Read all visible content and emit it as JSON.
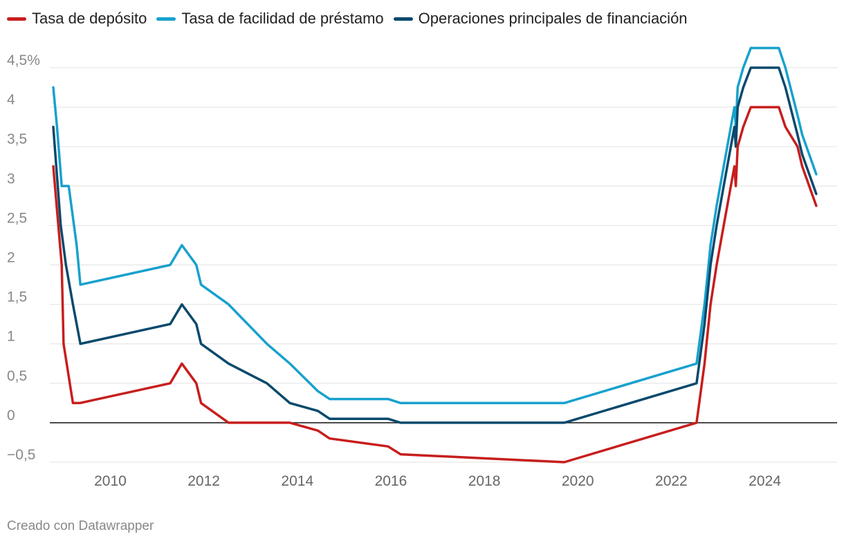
{
  "chart_data": {
    "type": "line",
    "title": "",
    "xlabel": "",
    "ylabel": "",
    "xlim": [
      2008.75,
      2025.25
    ],
    "ylim": [
      -0.6,
      4.9
    ],
    "y_ticks": [
      {
        "value": 4.5,
        "label": "4,5%"
      },
      {
        "value": 4,
        "label": "4"
      },
      {
        "value": 3.5,
        "label": "3,5"
      },
      {
        "value": 3,
        "label": "3"
      },
      {
        "value": 2.5,
        "label": "2,5"
      },
      {
        "value": 2,
        "label": "2"
      },
      {
        "value": 1.5,
        "label": "1,5"
      },
      {
        "value": 1,
        "label": "1"
      },
      {
        "value": 0.5,
        "label": "0,5"
      },
      {
        "value": 0,
        "label": "0"
      },
      {
        "value": -0.5,
        "label": "−0,5"
      }
    ],
    "x_ticks": [
      {
        "value": 2010,
        "label": "2010"
      },
      {
        "value": 2012,
        "label": "2012"
      },
      {
        "value": 2014,
        "label": "2014"
      },
      {
        "value": 2016,
        "label": "2016"
      },
      {
        "value": 2018,
        "label": "2018"
      },
      {
        "value": 2020,
        "label": "2020"
      },
      {
        "value": 2022,
        "label": "2022"
      },
      {
        "value": 2024,
        "label": "2024"
      }
    ],
    "legend_position": "top-left",
    "series": [
      {
        "name": "Tasa de depósito",
        "color": "#c71e1d",
        "points": [
          [
            2008.78,
            3.25
          ],
          [
            2008.96,
            2.0
          ],
          [
            2009.0,
            1.0
          ],
          [
            2009.2,
            0.25
          ],
          [
            2009.35,
            0.25
          ],
          [
            2011.28,
            0.5
          ],
          [
            2011.53,
            0.75
          ],
          [
            2011.84,
            0.5
          ],
          [
            2011.94,
            0.25
          ],
          [
            2012.53,
            0.0
          ],
          [
            2013.84,
            0.0
          ],
          [
            2014.44,
            -0.1
          ],
          [
            2014.69,
            -0.2
          ],
          [
            2015.94,
            -0.3
          ],
          [
            2016.21,
            -0.4
          ],
          [
            2019.71,
            -0.5
          ],
          [
            2022.54,
            0.0
          ],
          [
            2022.71,
            0.75
          ],
          [
            2022.84,
            1.5
          ],
          [
            2022.97,
            2.0
          ],
          [
            2023.12,
            2.5
          ],
          [
            2023.35,
            3.25
          ],
          [
            2023.38,
            3.0
          ],
          [
            2023.42,
            3.5
          ],
          [
            2023.54,
            3.75
          ],
          [
            2023.7,
            4.0
          ],
          [
            2024.3,
            4.0
          ],
          [
            2024.44,
            3.75
          ],
          [
            2024.7,
            3.5
          ],
          [
            2024.8,
            3.25
          ],
          [
            2025.1,
            2.75
          ]
        ]
      },
      {
        "name": "Tasa de facilidad de préstamo",
        "color": "#18a1cd",
        "points": [
          [
            2008.78,
            4.25
          ],
          [
            2008.86,
            3.75
          ],
          [
            2008.96,
            3.0
          ],
          [
            2009.11,
            3.0
          ],
          [
            2009.28,
            2.25
          ],
          [
            2009.36,
            1.75
          ],
          [
            2011.28,
            2.0
          ],
          [
            2011.53,
            2.25
          ],
          [
            2011.84,
            2.0
          ],
          [
            2011.94,
            1.75
          ],
          [
            2012.53,
            1.5
          ],
          [
            2013.35,
            1.0
          ],
          [
            2013.84,
            0.75
          ],
          [
            2014.44,
            0.4
          ],
          [
            2014.69,
            0.3
          ],
          [
            2015.94,
            0.3
          ],
          [
            2016.21,
            0.25
          ],
          [
            2019.71,
            0.25
          ],
          [
            2022.54,
            0.75
          ],
          [
            2022.71,
            1.5
          ],
          [
            2022.84,
            2.25
          ],
          [
            2022.97,
            2.75
          ],
          [
            2023.12,
            3.25
          ],
          [
            2023.35,
            4.0
          ],
          [
            2023.38,
            3.75
          ],
          [
            2023.42,
            4.25
          ],
          [
            2023.54,
            4.5
          ],
          [
            2023.7,
            4.75
          ],
          [
            2024.3,
            4.75
          ],
          [
            2024.44,
            4.5
          ],
          [
            2024.7,
            3.9
          ],
          [
            2024.8,
            3.65
          ],
          [
            2025.1,
            3.15
          ]
        ]
      },
      {
        "name": "Operaciones principales de financiación",
        "color": "#09496c",
        "points": [
          [
            2008.78,
            3.75
          ],
          [
            2008.94,
            2.5
          ],
          [
            2009.05,
            2.0
          ],
          [
            2009.2,
            1.5
          ],
          [
            2009.28,
            1.25
          ],
          [
            2009.36,
            1.0
          ],
          [
            2011.28,
            1.25
          ],
          [
            2011.53,
            1.5
          ],
          [
            2011.84,
            1.25
          ],
          [
            2011.94,
            1.0
          ],
          [
            2012.53,
            0.75
          ],
          [
            2013.35,
            0.5
          ],
          [
            2013.84,
            0.25
          ],
          [
            2014.44,
            0.15
          ],
          [
            2014.69,
            0.05
          ],
          [
            2015.94,
            0.05
          ],
          [
            2016.21,
            0.0
          ],
          [
            2019.71,
            0.0
          ],
          [
            2022.54,
            0.5
          ],
          [
            2022.71,
            1.25
          ],
          [
            2022.84,
            2.0
          ],
          [
            2022.97,
            2.5
          ],
          [
            2023.12,
            3.0
          ],
          [
            2023.35,
            3.75
          ],
          [
            2023.38,
            3.5
          ],
          [
            2023.42,
            4.0
          ],
          [
            2023.54,
            4.25
          ],
          [
            2023.7,
            4.5
          ],
          [
            2024.3,
            4.5
          ],
          [
            2024.44,
            4.25
          ],
          [
            2024.7,
            3.65
          ],
          [
            2024.8,
            3.4
          ],
          [
            2025.1,
            2.9
          ]
        ]
      }
    ]
  },
  "footer": {
    "credit": "Creado con Datawrapper"
  }
}
